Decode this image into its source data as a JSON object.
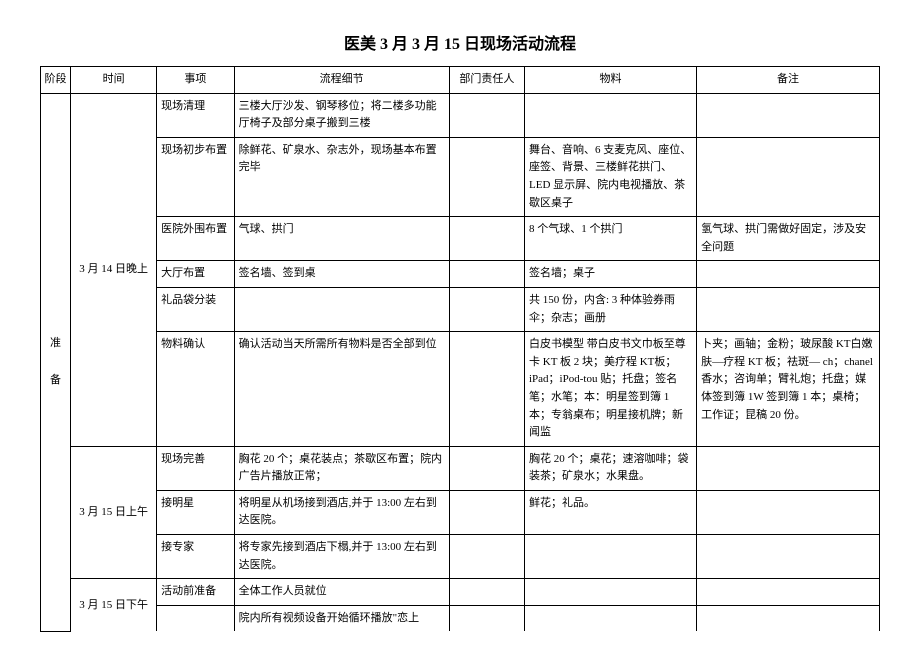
{
  "title": "医美 3 月 3 月 15 日现场活动流程",
  "headers": {
    "phase": "阶段",
    "time": "时间",
    "item": "事项",
    "detail": "流程细节",
    "person": "部门责任人",
    "material": "物料",
    "remark": "备注"
  },
  "phase_label_1": "准",
  "phase_label_2": "备",
  "time1": "3 月 14 日晚上",
  "time2": "3 月 15 日上午",
  "time3": "3 月 15 日下午",
  "rows": {
    "r1": {
      "item": "现场清理",
      "detail": "三楼大厅沙发、钢琴移位；将二楼多功能厅椅子及部分桌子搬到三楼",
      "material": "",
      "remark": ""
    },
    "r2": {
      "item": "现场初步布置",
      "detail": "除鲜花、矿泉水、杂志外，现场基本布置完毕",
      "material": "舞台、音响、6 支麦克风、座位、座签、背景、三楼鲜花拱门、LED 显示屏、院内电视播放、茶歇区桌子",
      "remark": ""
    },
    "r3": {
      "item": "医院外围布置",
      "detail": "气球、拱门",
      "material": "8 个气球、1 个拱门",
      "remark": "氢气球、拱门需做好固定，涉及安全问题"
    },
    "r4": {
      "item": "大厅布置",
      "detail": "签名墙、签到桌",
      "material": "签名墙；桌子",
      "remark": ""
    },
    "r5": {
      "item": "礼品袋分装",
      "detail": "",
      "material": "共 150 份，内含: 3 种体验券雨伞；杂志；画册",
      "remark": ""
    },
    "r6": {
      "item": "物料确认",
      "detail": "确认活动当天所需所有物料是否全部到位",
      "material": "白皮书模型 带白皮书文巾板至尊卡 KT 板 2 块；美疗程 KT板；iPad；iPod-tou 贴；托盘；签名笔；水笔；本：明星签到簿 1 本；专翁桌布；明星接机牌；新闻监",
      "remark": "卜夹；画轴；金粉；玻尿酸 KT白嫩肤—疗程 KT 板；祛斑— ch；chanel 香水；咨询单；臂礼炮；托盘；媒体签到簿 1W 签到簿 1 本；桌椅；工作证；昆稿 20 份。"
    },
    "r7": {
      "item": "现场完善",
      "detail": "胸花 20 个；桌花装点；茶歇区布置；院内广告片播放正常；",
      "material": "胸花 20 个；桌花；速溶咖啡；袋装茶；矿泉水；水果盘。",
      "remark": ""
    },
    "r8": {
      "item": "接明星",
      "detail": "将明星从机场接到酒店,并于 13:00 左右到达医院。",
      "material": "鲜花；礼品。",
      "remark": ""
    },
    "r9": {
      "item": "接专家",
      "detail": "将专家先接到酒店下榻,并于 13:00 左右到达医院。",
      "material": "",
      "remark": ""
    },
    "r10": {
      "item": "活动前准备",
      "detail": "全体工作人员就位",
      "material": "",
      "remark": ""
    },
    "r11": {
      "item": "",
      "detail": "院内所有视频设备开始循环播放\"恋上",
      "material": "",
      "remark": ""
    }
  }
}
